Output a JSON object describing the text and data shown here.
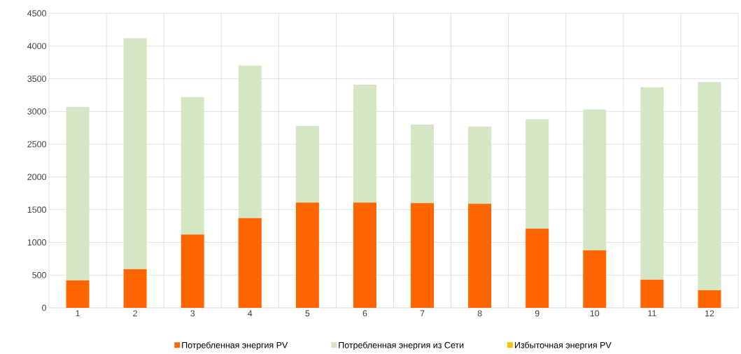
{
  "chart_data": {
    "type": "bar",
    "stacked": true,
    "categories": [
      "1",
      "2",
      "3",
      "4",
      "5",
      "6",
      "7",
      "8",
      "9",
      "10",
      "11",
      "12"
    ],
    "series": [
      {
        "name": "Потребленная энергия PV",
        "color": "#ff6600",
        "values": [
          420,
          590,
          1120,
          1370,
          1610,
          1610,
          1600,
          1590,
          1210,
          880,
          430,
          270
        ]
      },
      {
        "name": "Потребленная энергия из Сети",
        "color": "#d4e6c4",
        "values": [
          2650,
          3530,
          2100,
          2330,
          1170,
          1800,
          1200,
          1180,
          1670,
          2150,
          2940,
          3180
        ]
      },
      {
        "name": "Избыточная энергия PV",
        "color": "#ffc000",
        "values": [
          0,
          0,
          0,
          0,
          0,
          0,
          0,
          0,
          0,
          0,
          0,
          0
        ]
      }
    ],
    "ylim": [
      0,
      4500
    ],
    "yticks": [
      0,
      500,
      1000,
      1500,
      2000,
      2500,
      3000,
      3500,
      4000,
      4500
    ],
    "grid": true,
    "legend": "bottom"
  }
}
